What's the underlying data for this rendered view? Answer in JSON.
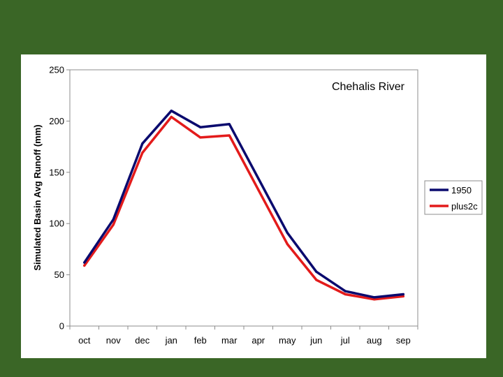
{
  "chart_data": {
    "type": "line",
    "title": "Chehalis River",
    "xlabel": "",
    "ylabel": "Simulated Basin Avg Runoff (mm)",
    "ylim": [
      0,
      250
    ],
    "yticks": [
      0,
      50,
      100,
      150,
      200,
      250
    ],
    "categories": [
      "oct",
      "nov",
      "dec",
      "jan",
      "feb",
      "mar",
      "apr",
      "may",
      "jun",
      "jul",
      "aug",
      "sep"
    ],
    "series": [
      {
        "name": "1950",
        "color": "#0a0a6e",
        "values": [
          62,
          104,
          178,
          210,
          194,
          197,
          144,
          91,
          53,
          34,
          28,
          31
        ]
      },
      {
        "name": "plus2c",
        "color": "#e31b1b",
        "values": [
          59,
          99,
          169,
          204,
          184,
          186,
          133,
          80,
          45,
          31,
          26,
          29
        ]
      }
    ],
    "legend": "right",
    "grid": false
  }
}
